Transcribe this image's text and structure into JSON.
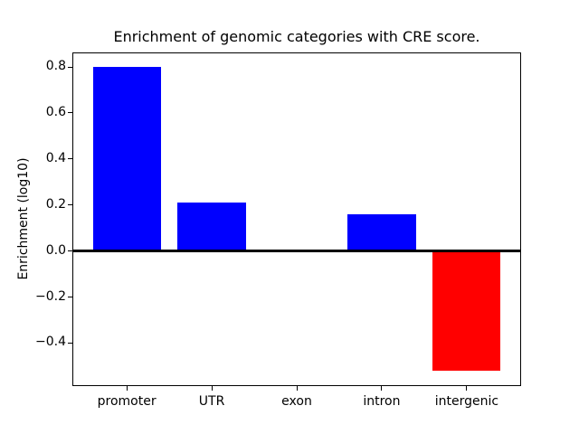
{
  "chart_data": {
    "type": "bar",
    "title": "Enrichment of genomic categories with CRE score.",
    "xlabel": "",
    "ylabel": "Enrichment (log10)",
    "categories": [
      "promoter",
      "UTR",
      "exon",
      "intron",
      "intergenic"
    ],
    "values": [
      0.8,
      0.21,
      0.0,
      0.16,
      -0.52
    ],
    "bar_colors": [
      "#0000ff",
      "#0000ff",
      "#0000ff",
      "#0000ff",
      "#ff0000"
    ],
    "positive_color": "#0000ff",
    "negative_color": "#ff0000",
    "yticks": [
      0.8,
      0.6,
      0.4,
      0.2,
      0.0,
      -0.2,
      -0.4
    ],
    "ytick_labels": [
      "0.8",
      "0.6",
      "0.4",
      "0.2",
      "0.0",
      "−0.2",
      "−0.4"
    ],
    "ylim": [
      -0.587,
      0.863
    ],
    "xlim": [
      -0.64,
      4.64
    ],
    "bar_width": 0.8,
    "grid": false,
    "legend": false,
    "zero_line": true,
    "background_color": "#ffffff",
    "axes_edge_color": "#000000"
  }
}
